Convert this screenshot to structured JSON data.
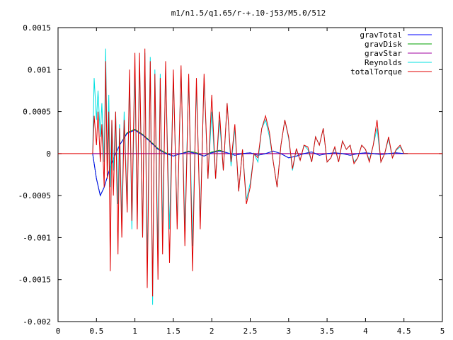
{
  "chart_data": {
    "type": "line",
    "title": "m1/n1.5/q1.65/r-+.10-j53/M5.0/512",
    "xlabel": "",
    "ylabel": "",
    "xlim": [
      0,
      5
    ],
    "ylim": [
      -0.002,
      0.0015
    ],
    "x_ticks": [
      "0",
      "0.5",
      "1",
      "1.5",
      "2",
      "2.5",
      "3",
      "3.5",
      "4",
      "4.5",
      "5"
    ],
    "x_tick_values": [
      0,
      0.5,
      1,
      1.5,
      2,
      2.5,
      3,
      3.5,
      4,
      4.5,
      5
    ],
    "y_ticks": [
      "0.0015",
      "0.001",
      "0.0005",
      "0",
      "-0.0005",
      "-0.001",
      "-0.0015",
      "-0.002"
    ],
    "y_tick_values": [
      0.0015,
      0.001,
      0.0005,
      0,
      -0.0005,
      -0.001,
      -0.0015,
      -0.002
    ],
    "grid": false,
    "legend_position": "top-right",
    "zero_line": true,
    "series": [
      {
        "name": "gravTotal",
        "color": "#0000ff",
        "x": [
          0.45,
          0.5,
          0.55,
          0.6,
          0.7,
          0.8,
          0.9,
          1.0,
          1.1,
          1.2,
          1.3,
          1.4,
          1.5,
          1.6,
          1.7,
          1.8,
          1.9,
          2.0,
          2.1,
          2.2,
          2.3,
          2.4,
          2.5,
          2.6,
          2.7,
          2.8,
          2.9,
          3.0,
          3.1,
          3.2,
          3.3,
          3.4,
          3.5,
          3.6,
          3.7,
          3.8,
          3.9,
          4.0,
          4.1,
          4.2,
          4.3,
          4.4,
          4.5,
          4.55
        ],
        "y": [
          0.0,
          -0.0003,
          -0.0005,
          -0.0004,
          -0.0001,
          0.0001,
          0.00024,
          0.00028,
          0.00022,
          0.00014,
          5e-05,
          0.0,
          -3e-05,
          0.0,
          2e-05,
          0.0,
          -3e-05,
          1e-05,
          3e-05,
          1e-05,
          -2e-05,
          0.0,
          1e-05,
          -2e-05,
          0.0,
          3e-05,
          0.0,
          -5e-05,
          -3e-05,
          0.0,
          2e-05,
          -2e-05,
          0.0,
          1e-05,
          0.0,
          -2e-05,
          0.0,
          1e-05,
          0.0,
          -1e-05,
          0.0,
          1e-05,
          0.0,
          0.0
        ]
      },
      {
        "name": "gravDisk",
        "color": "#00a000",
        "x": [
          0.45,
          0.5,
          0.55,
          0.6,
          0.7,
          0.8,
          0.9,
          1.0,
          1.1,
          1.2,
          1.3,
          1.4,
          1.5,
          1.6,
          1.7,
          1.8,
          1.9,
          2.0,
          2.1,
          2.2,
          2.3,
          2.4,
          2.5,
          2.6,
          2.7,
          2.8,
          2.9,
          3.0,
          3.1,
          3.2,
          3.3,
          3.4,
          3.5,
          3.6,
          3.7,
          3.8,
          3.9,
          4.0,
          4.1,
          4.2,
          4.3,
          4.4,
          4.5,
          4.55
        ],
        "y": [
          0.0,
          -0.0003,
          -0.0005,
          -0.0004,
          -0.0001,
          0.0001,
          0.00025,
          0.00029,
          0.00023,
          0.00015,
          6e-05,
          1e-05,
          -3e-05,
          0.0,
          3e-05,
          1e-05,
          -3e-05,
          2e-05,
          4e-05,
          1e-05,
          -2e-05,
          0.0,
          1e-05,
          -2e-05,
          0.0,
          3e-05,
          0.0,
          -5e-05,
          -3e-05,
          0.0,
          2e-05,
          -2e-05,
          0.0,
          1e-05,
          0.0,
          -2e-05,
          0.0,
          1e-05,
          0.0,
          -1e-05,
          0.0,
          1e-05,
          0.0,
          0.0
        ]
      },
      {
        "name": "gravStar",
        "color": "#a000a0",
        "x": [
          0.45,
          1.0,
          1.5,
          2.0,
          2.5,
          3.0,
          3.5,
          4.0,
          4.55
        ],
        "y": [
          0.0,
          0.0,
          0.0,
          0.0,
          0.0,
          0.0,
          0.0,
          0.0,
          0.0
        ]
      },
      {
        "name": "Reynolds",
        "color": "#00e0e0",
        "x": [
          0.45,
          0.47,
          0.5,
          0.52,
          0.55,
          0.57,
          0.6,
          0.62,
          0.64,
          0.66,
          0.68,
          0.7,
          0.72,
          0.75,
          0.78,
          0.8,
          0.83,
          0.86,
          0.9,
          0.93,
          0.96,
          1.0,
          1.03,
          1.06,
          1.1,
          1.13,
          1.16,
          1.2,
          1.23,
          1.26,
          1.3,
          1.33,
          1.36,
          1.4,
          1.45,
          1.5,
          1.55,
          1.6,
          1.65,
          1.7,
          1.75,
          1.8,
          1.85,
          1.9,
          1.95,
          2.0,
          2.05,
          2.1,
          2.15,
          2.2,
          2.25,
          2.3,
          2.35,
          2.4,
          2.45,
          2.5,
          2.55,
          2.6,
          2.65,
          2.7,
          2.75,
          2.8,
          2.85,
          2.9,
          2.95,
          3.0,
          3.05,
          3.1,
          3.15,
          3.2,
          3.25,
          3.3,
          3.35,
          3.4,
          3.45,
          3.5,
          3.55,
          3.6,
          3.65,
          3.7,
          3.75,
          3.8,
          3.85,
          3.9,
          3.95,
          4.0,
          4.05,
          4.1,
          4.15,
          4.2,
          4.25,
          4.3,
          4.35,
          4.4,
          4.45,
          4.5,
          4.55
        ],
        "y": [
          0.0,
          0.0009,
          0.0004,
          0.00075,
          0.0002,
          0.0006,
          -0.0001,
          0.00125,
          -0.0001,
          0.0007,
          -0.0004,
          0.0004,
          -0.0002,
          0.0005,
          -0.0006,
          0.00035,
          -0.0008,
          0.0005,
          -0.0006,
          0.0009,
          -0.0009,
          0.001,
          -0.0008,
          0.0011,
          -0.001,
          0.0012,
          -0.0013,
          0.00115,
          -0.0018,
          0.001,
          -0.0012,
          0.00095,
          -0.0009,
          0.001,
          -0.0009,
          0.0009,
          -0.0008,
          0.001,
          -0.0009,
          0.0009,
          -0.0011,
          0.0008,
          -0.0008,
          0.0009,
          -0.0003,
          0.0005,
          -0.0003,
          0.0004,
          -0.0002,
          0.0006,
          -0.00015,
          0.0003,
          -0.00045,
          5e-05,
          -0.00055,
          -0.00035,
          0.0,
          -0.0001,
          0.0003,
          0.0004,
          0.0002,
          -0.0001,
          -0.0004,
          0.0001,
          0.0004,
          0.00018,
          -0.0002,
          5e-05,
          -8e-05,
          0.0001,
          5e-05,
          -0.0001,
          0.0002,
          0.0001,
          0.0003,
          -0.0001,
          -5e-05,
          7e-05,
          -0.0001,
          0.00015,
          5e-05,
          0.0001,
          -0.0001,
          -5e-05,
          0.0001,
          5e-05,
          -8e-05,
          0.0001,
          0.0003,
          -0.0001,
          0.0,
          0.00018,
          -5e-05,
          4e-05,
          8e-05,
          0.0,
          0.0
        ]
      },
      {
        "name": "totalTorque",
        "color": "#e00000",
        "x": [
          0.45,
          0.47,
          0.5,
          0.52,
          0.55,
          0.57,
          0.6,
          0.62,
          0.64,
          0.66,
          0.68,
          0.7,
          0.72,
          0.75,
          0.78,
          0.8,
          0.83,
          0.86,
          0.9,
          0.93,
          0.96,
          1.0,
          1.03,
          1.06,
          1.1,
          1.13,
          1.16,
          1.2,
          1.23,
          1.26,
          1.3,
          1.33,
          1.36,
          1.4,
          1.45,
          1.5,
          1.55,
          1.6,
          1.65,
          1.7,
          1.75,
          1.8,
          1.85,
          1.9,
          1.95,
          2.0,
          2.05,
          2.1,
          2.15,
          2.2,
          2.25,
          2.3,
          2.35,
          2.4,
          2.45,
          2.5,
          2.55,
          2.6,
          2.65,
          2.7,
          2.75,
          2.8,
          2.85,
          2.9,
          2.95,
          3.0,
          3.05,
          3.1,
          3.15,
          3.2,
          3.25,
          3.3,
          3.35,
          3.4,
          3.45,
          3.5,
          3.55,
          3.6,
          3.65,
          3.7,
          3.75,
          3.8,
          3.85,
          3.9,
          3.95,
          4.0,
          4.05,
          4.1,
          4.15,
          4.2,
          4.25,
          4.3,
          4.35,
          4.4,
          4.45,
          4.5,
          4.55
        ],
        "y": [
          0.0,
          0.00045,
          0.0001,
          0.0005,
          -0.0001,
          0.00035,
          -0.0004,
          0.0011,
          -0.0003,
          0.0005,
          -0.0014,
          0.0004,
          -0.0005,
          0.0005,
          -0.0012,
          0.0003,
          -0.001,
          0.0004,
          -0.0007,
          0.001,
          -0.0008,
          0.0012,
          -0.0009,
          0.0012,
          -0.001,
          0.00125,
          -0.0016,
          0.0011,
          -0.0017,
          0.00095,
          -0.0015,
          0.0009,
          -0.0012,
          0.0011,
          -0.0013,
          0.001,
          -0.0009,
          0.00105,
          -0.0011,
          0.00095,
          -0.0014,
          0.0009,
          -0.0009,
          0.00095,
          -0.0003,
          0.0007,
          -0.0003,
          0.0005,
          -0.0002,
          0.0006,
          -0.0001,
          0.00035,
          -0.00045,
          5e-05,
          -0.0006,
          -0.0004,
          0.0,
          -5e-05,
          0.0003,
          0.00045,
          0.00025,
          -0.0001,
          -0.0004,
          0.0001,
          0.0004,
          0.0002,
          -0.00018,
          6e-05,
          -8e-05,
          0.0001,
          8e-05,
          -0.0001,
          0.0002,
          0.0001,
          0.0003,
          -0.0001,
          -5e-05,
          8e-05,
          -0.0001,
          0.00015,
          5e-05,
          0.0001,
          -0.00012,
          -5e-05,
          0.0001,
          5e-05,
          -0.0001,
          0.0001,
          0.0004,
          -0.0001,
          0.0,
          0.0002,
          -5e-05,
          5e-05,
          0.0001,
          0.0,
          0.0
        ]
      }
    ]
  }
}
